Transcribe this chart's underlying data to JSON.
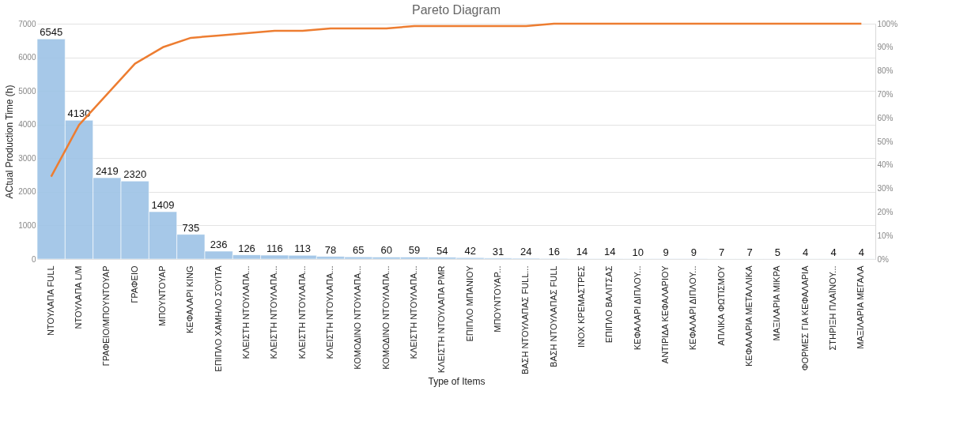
{
  "chart_data": {
    "type": "bar",
    "title": "Pareto Diagram",
    "xlabel": "Type of Items",
    "ylabel": "ACtual Production Time (h)",
    "categories": [
      "ΝΤΟΥΛΑΠΑ FULL",
      "ΝΤΟΥΛΑΠΑ L/M",
      "ΓΡΑΦΕΙΟ/ΜΠΟΥΝΤΟΥΑΡ",
      "ΓΡΑΦΕΙΟ",
      "ΜΠΟΥΝΤΟΥΑΡ",
      "ΚΕΦΑΛΑΡΙ KING",
      "ΕΠΙΠΛΟ ΧΑΜΗΛΟ ΣΟΥΙΤΑ",
      "ΚΛΕΙΣΤΗ ΝΤΟΥΛΑΠΑ...",
      "ΚΛΕΙΣΤΗ ΝΤΟΥΛΑΠΑ...",
      "ΚΛΕΙΣΤΗ ΝΤΟΥΛΑΠΑ...",
      "ΚΛΕΙΣΤΗ ΝΤΟΥΛΑΠΑ...",
      "ΚΟΜΟΔΙΝΟ ΝΤΟΥΛΑΠΑ...",
      "ΚΟΜΟΔΙΝΟ ΝΤΟΥΛΑΠΑ...",
      "ΚΛΕΙΣΤΗ ΝΤΟΥΛΑΠΑ...",
      "ΚΛΕΙΣΤΗ ΝΤΟΥΛΑΠΑ PMR",
      "ΕΠΙΠΛΟ ΜΠΑΝΙΟΥ",
      "ΜΠΟΥΝΤΟΥΑΡ...",
      "ΒΑΣΗ ΝΤΟΥΛΑΠΑΣ FULL...",
      "ΒΑΣΗ ΝΤΟΥΛΑΠΑΣ FULL",
      "ΙΝΟΧ ΚΡΕΜΑΣΤΡΕΣ",
      "ΕΠΙΠΛΟ ΒΑΛΙΤΣΑΣ",
      "ΚΕΦΑΛΑΡΙ ΔΙΠΛΟΥ...",
      "ΑΝΤΙΡΙΔΑ ΚΕΦΑΛΑΡΙΟΥ",
      "ΚΕΦΑΛΑΡΙ ΔΙΠΛΟΥ...",
      "ΑΠΛΙΚΑ ΦΩΤΙΣΜΟΥ",
      "ΚΕΦΑΛΑΡΙΑ ΜΕΤΑΛΛΙΚΑ",
      "ΜΑΞΙΛΑΡΙΑ ΜΙΚΡΑ",
      "ΦΟΡΜΕΣ ΓΙΑ ΚΕΦΑΛΑΡΙΑ",
      "ΣΤΗΡΙΞΗ ΠΛΑΪΝΟΥ...",
      "ΜΑΞΙΛΑΡΙΑ ΜΕΓΑΛΑ"
    ],
    "series": [
      {
        "color": "#9dc3e6",
        "values": [
          6545,
          4130,
          2419,
          2320,
          1409,
          735,
          236,
          126,
          116,
          113,
          78,
          65,
          60,
          59,
          54,
          42,
          31,
          24,
          16,
          14,
          14,
          10,
          9,
          9,
          7,
          7,
          5,
          4,
          4,
          4
        ],
        "value_labels": [
          "6545",
          "4130",
          "2419",
          "2320",
          "1409",
          "735",
          "236",
          "126",
          "116",
          "113",
          "78",
          "65",
          "60",
          "59",
          "54",
          "42",
          "31",
          "24",
          "16",
          "14",
          "14",
          "10",
          "9",
          "9",
          "7",
          "7",
          "5",
          "4",
          "4",
          "4"
        ]
      },
      {
        "type": "line",
        "axis": "y2",
        "color": "#ed7d31",
        "values": [
          35,
          57,
          70,
          83,
          90,
          94,
          95,
          96,
          97,
          97,
          98,
          98,
          98,
          99,
          99,
          99,
          99,
          99,
          100,
          100,
          100,
          100,
          100,
          100,
          100,
          100,
          100,
          100,
          100,
          100
        ]
      }
    ],
    "ylim": [
      0,
      7000
    ],
    "yticks": [
      0,
      1000,
      2000,
      3000,
      4000,
      5000,
      6000,
      7000
    ],
    "y2lim": [
      0,
      100
    ],
    "y2ticks": [
      {
        "value": 0,
        "label": "0%"
      },
      {
        "value": 10,
        "label": "10%"
      },
      {
        "value": 20,
        "label": "20%"
      },
      {
        "value": 30,
        "label": "30%"
      },
      {
        "value": 40,
        "label": "40%"
      },
      {
        "value": 50,
        "label": "50%"
      },
      {
        "value": 60,
        "label": "60%"
      },
      {
        "value": 70,
        "label": "70%"
      },
      {
        "value": 80,
        "label": "80%"
      },
      {
        "value": 90,
        "label": "90%"
      },
      {
        "value": 100,
        "label": "100%"
      }
    ],
    "grid": "y",
    "marker": "none",
    "line_style": "solid"
  }
}
